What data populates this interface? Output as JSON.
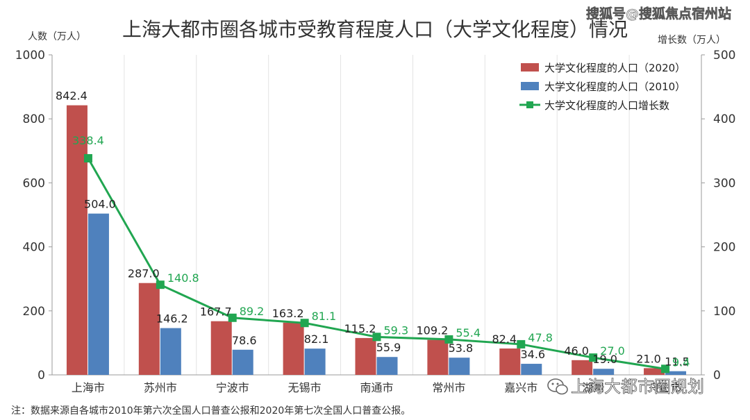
{
  "chart_data": {
    "type": "bar",
    "title": "上海大都市圈各城市受教育程度人口（大学文化程度）情况",
    "ylabel_left": "人数（万人）",
    "ylabel_right": "增长数（万人）",
    "categories": [
      "上海市",
      "苏州市",
      "宁波市",
      "无锡市",
      "南通市",
      "常州市",
      "嘉兴市",
      "湖州",
      "舟山市"
    ],
    "ylim_left": [
      0,
      1000
    ],
    "ylim_right": [
      0,
      500
    ],
    "yticks_left": [
      "0",
      "200",
      "400",
      "600",
      "800",
      "1000"
    ],
    "yticks_right": [
      "0",
      "100",
      "200",
      "300",
      "400",
      "500"
    ],
    "legend_position": "top-right",
    "grid": "vertical",
    "series": [
      {
        "name": "大学文化程度的人口（2020）",
        "kind": "bar",
        "axis": "left",
        "color": "#c0504d",
        "values": [
          842.4,
          287.0,
          167.7,
          163.2,
          115.2,
          109.2,
          82.4,
          46.0,
          21.0
        ],
        "labels": [
          "842.4",
          "287.0",
          "167.7",
          "163.2",
          "115.2",
          "109.2",
          "82.4",
          "46.0",
          "21.0"
        ]
      },
      {
        "name": "大学文化程度的人口（2010）",
        "kind": "bar",
        "axis": "left",
        "color": "#4f81bd",
        "values": [
          504.0,
          146.2,
          78.6,
          82.1,
          55.9,
          53.8,
          34.6,
          19.0,
          11.5
        ],
        "labels": [
          "504.0",
          "146.2",
          "78.6",
          "82.1",
          "55.9",
          "53.8",
          "34.6",
          "19.0",
          "11.5"
        ]
      },
      {
        "name": "大学文化程度的人口增长数",
        "kind": "line",
        "axis": "right",
        "color": "#21a651",
        "values": [
          338.4,
          140.8,
          89.2,
          81.1,
          59.3,
          55.4,
          47.8,
          27.0,
          9.4
        ],
        "labels": [
          "338.4",
          "140.8",
          "89.2",
          "81.1",
          "59.3",
          "55.4",
          "47.8",
          "27.0",
          "9.4"
        ]
      }
    ],
    "footnote": "注：数据来源自各城市2010年第六次全国人口普查公报和2020年第七次全国人口普查公报。"
  },
  "watermark_top": "搜狐号@搜狐焦点宿州站",
  "watermark_bottom": "上海大都市圈规划",
  "watermark_bottom_icon": "wechat-icon"
}
